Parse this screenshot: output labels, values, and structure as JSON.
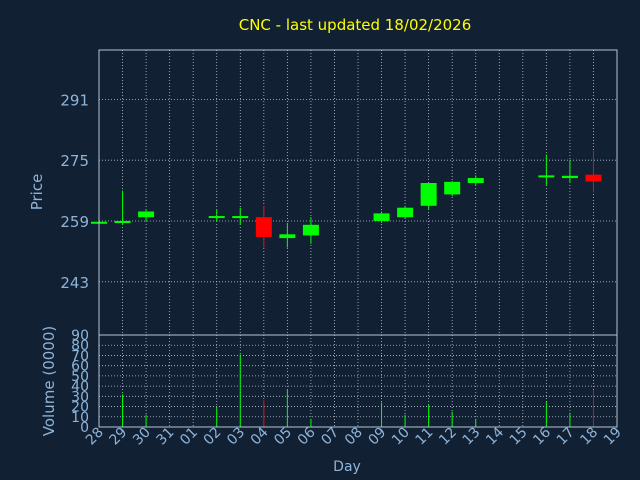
{
  "chart_data": {
    "type": "candlestick",
    "title": "CNC - last updated 18/02/2026",
    "xlabel": "Day",
    "price_panel": {
      "ylabel": "Price",
      "ylim": [
        229,
        304
      ],
      "yticks": [
        243,
        259,
        275,
        291
      ],
      "grid": true
    },
    "volume_panel": {
      "ylabel": "Volume (0000)",
      "ylim": [
        0,
        90
      ],
      "yticks": [
        0,
        10,
        20,
        30,
        40,
        50,
        60,
        70,
        80,
        90
      ],
      "grid": true
    },
    "x_tick_labels": [
      "28",
      "29",
      "30",
      "31",
      "01",
      "02",
      "03",
      "04",
      "05",
      "06",
      "07",
      "08",
      "09",
      "10",
      "11",
      "12",
      "13",
      "14",
      "15",
      "16",
      "17",
      "18",
      "19"
    ],
    "candles": [
      {
        "day": "28",
        "open": 258.6,
        "high": 259.0,
        "low": 258.0,
        "close": 258.8,
        "volume": 0
      },
      {
        "day": "29",
        "open": 258.6,
        "high": 267.0,
        "low": 258.0,
        "close": 259.0,
        "volume": 32
      },
      {
        "day": "30",
        "open": 260.0,
        "high": 262.0,
        "low": 259.0,
        "close": 261.5,
        "volume": 12
      },
      {
        "day": "02",
        "open": 259.9,
        "high": 262.0,
        "low": 258.8,
        "close": 260.3,
        "volume": 19
      },
      {
        "day": "03",
        "open": 259.9,
        "high": 262.5,
        "low": 258.0,
        "close": 260.3,
        "volume": 71
      },
      {
        "day": "04",
        "open": 260.0,
        "high": 263.0,
        "low": 252.0,
        "close": 254.8,
        "volume": 26
      },
      {
        "day": "05",
        "open": 254.5,
        "high": 258.5,
        "low": 252.0,
        "close": 255.5,
        "volume": 37
      },
      {
        "day": "06",
        "open": 255.2,
        "high": 260.0,
        "low": 253.0,
        "close": 258.0,
        "volume": 8
      },
      {
        "day": "09",
        "open": 259.0,
        "high": 261.5,
        "low": 258.5,
        "close": 261.0,
        "volume": 24
      },
      {
        "day": "10",
        "open": 260.0,
        "high": 263.0,
        "low": 259.8,
        "close": 262.5,
        "volume": 12
      },
      {
        "day": "11",
        "open": 263.0,
        "high": 269.0,
        "low": 262.0,
        "close": 269.0,
        "volume": 22
      },
      {
        "day": "12",
        "open": 266.0,
        "high": 269.5,
        "low": 265.5,
        "close": 269.3,
        "volume": 15
      },
      {
        "day": "13",
        "open": 269.0,
        "high": 271.0,
        "low": 268.5,
        "close": 270.3,
        "volume": 8
      },
      {
        "day": "16",
        "open": 270.5,
        "high": 276.5,
        "low": 268.5,
        "close": 271.0,
        "volume": 25
      },
      {
        "day": "17",
        "open": 270.3,
        "high": 275.0,
        "low": 269.0,
        "close": 270.9,
        "volume": 14
      },
      {
        "day": "18",
        "open": 271.2,
        "high": 277.5,
        "low": 266.5,
        "close": 269.4,
        "volume": 36
      }
    ]
  },
  "colors": {
    "background": "#112033",
    "title": "#ffff00",
    "axis_text": "#8fb4d8",
    "frame": "#b8c4d0",
    "grid": "#b8c4d0",
    "up": "#00ff00",
    "down": "#ff0000"
  }
}
